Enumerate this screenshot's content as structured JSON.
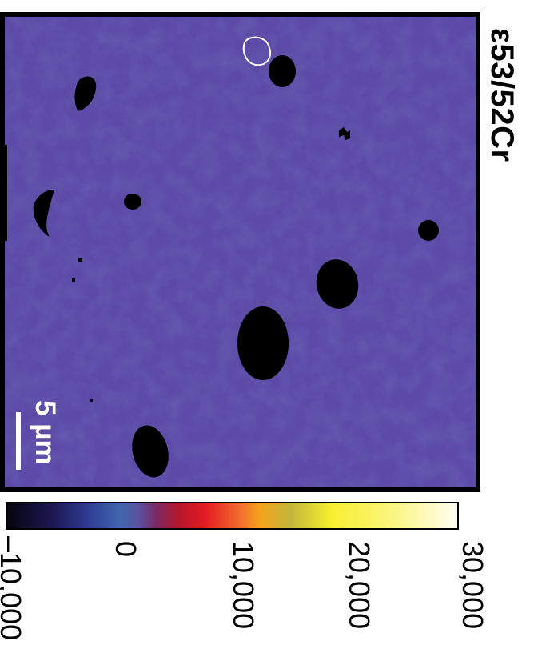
{
  "title": "ε53/52Cr",
  "scale_bar": {
    "label": "5 µm",
    "color": "#ffffff"
  },
  "map": {
    "background_color": "#5b4aa6",
    "hole_color": "#000000",
    "outline_color": "#ffffff"
  },
  "colorbar": {
    "tick_labels": [
      "–10,000",
      "0",
      "10,000",
      "20,000",
      "30,000"
    ],
    "min": -10000,
    "max": 30000
  }
}
